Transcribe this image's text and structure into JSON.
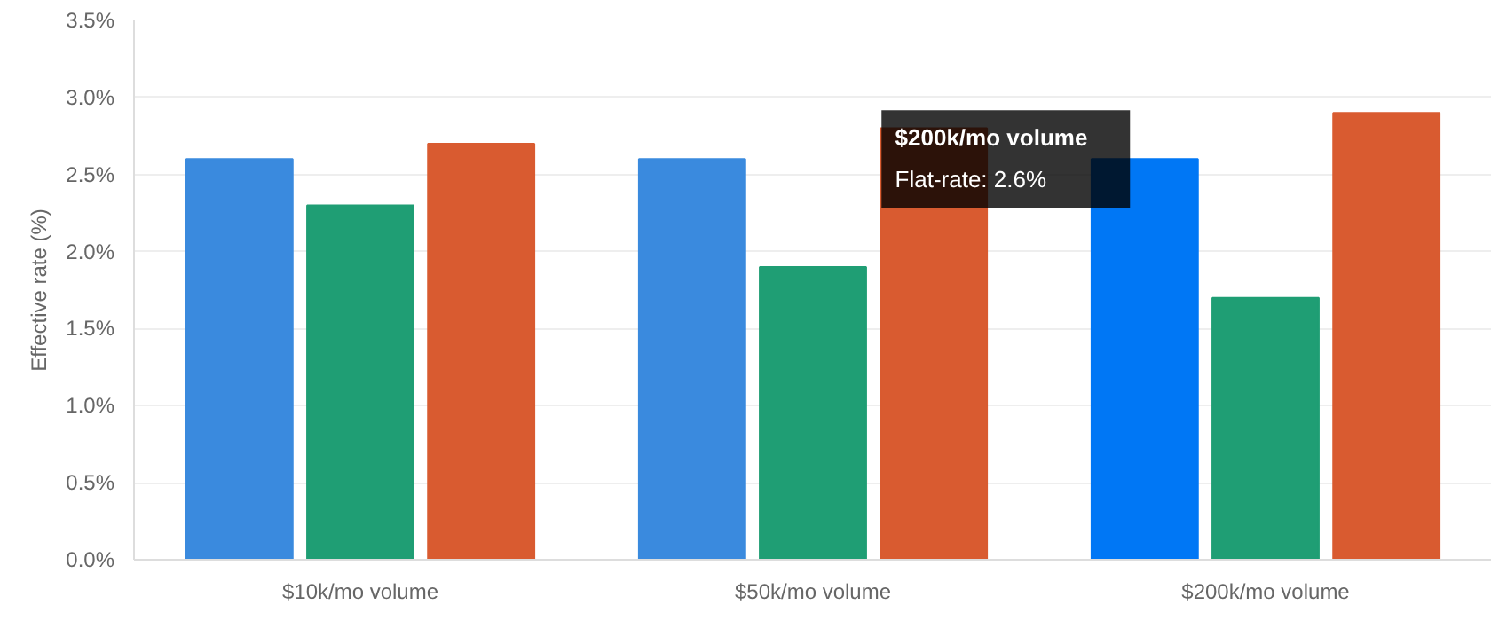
{
  "chart_data": {
    "type": "bar",
    "ylabel": "Effective rate (%)",
    "categories": [
      "$10k/mo volume",
      "$50k/mo volume",
      "$200k/mo volume"
    ],
    "series": [
      {
        "color": "#3a8ade",
        "colors": [
          "#3a8ade",
          "#3a8ade",
          "#0077f5"
        ],
        "values": [
          2.6,
          2.6,
          2.6
        ]
      },
      {
        "color": "#1f9e74",
        "values": [
          2.3,
          1.9,
          1.7
        ]
      },
      {
        "color": "#d95b30",
        "values": [
          2.7,
          2.8,
          2.9
        ]
      }
    ],
    "ylim": [
      0,
      3.5
    ],
    "yticks": [
      {
        "value": 0,
        "label": "0.0%"
      },
      {
        "value": 0.5,
        "label": "0.5%"
      },
      {
        "value": 1,
        "label": "1.0%"
      },
      {
        "value": 1.5,
        "label": "1.5%"
      },
      {
        "value": 2,
        "label": "2.0%"
      },
      {
        "value": 2.5,
        "label": "2.5%"
      },
      {
        "value": 3,
        "label": "3.0%"
      },
      {
        "value": 3.5,
        "label": "3.5%"
      }
    ],
    "annotations": [
      "$200k/mo volume",
      "Flat-rate: 2.6%"
    ],
    "grid": "y"
  }
}
